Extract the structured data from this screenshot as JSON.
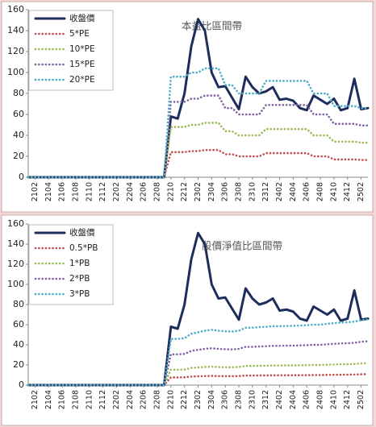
{
  "chart_data": [
    {
      "type": "line",
      "title": "本益比區間帶",
      "legend": "upper left",
      "ylim": [
        0,
        160
      ],
      "yticks": [
        0,
        20,
        40,
        60,
        80,
        100,
        120,
        140,
        160
      ],
      "categories": [
        null,
        "2102",
        null,
        "2104",
        null,
        "2106",
        null,
        "2108",
        null,
        "2110",
        null,
        "2112",
        null,
        "2202",
        null,
        "2204",
        null,
        "2206",
        null,
        "2208",
        null,
        "2210",
        null,
        "2212",
        null,
        "2302",
        null,
        "2304",
        null,
        "2306",
        null,
        "2308",
        null,
        "2310",
        null,
        "2312",
        null,
        "2402",
        null,
        "2404",
        null,
        "2406",
        null,
        "2408",
        null,
        "2410",
        null,
        "2412",
        null,
        "2502",
        null
      ],
      "series": [
        {
          "name": "收盤價",
          "color": "#1f2d5c",
          "values": [
            0,
            0,
            0,
            0,
            0,
            0,
            0,
            0,
            0,
            0,
            0,
            0,
            0,
            0,
            0,
            0,
            0,
            0,
            0,
            0,
            0,
            58,
            56,
            80,
            125,
            151,
            140,
            100,
            86,
            87,
            76,
            65,
            96,
            86,
            80,
            82,
            86,
            74,
            75,
            73,
            66,
            64,
            78,
            74,
            70,
            75,
            64,
            66,
            94,
            65,
            66
          ]
        },
        {
          "name": "5*PE",
          "color": "#c0504d",
          "values": [
            0,
            0,
            0,
            0,
            0,
            0,
            0,
            0,
            0,
            0,
            0,
            0,
            0,
            0,
            0,
            0,
            0,
            0,
            0,
            0,
            0,
            24,
            24,
            24,
            25,
            25,
            26,
            26,
            26,
            22,
            22,
            20,
            20,
            20,
            20,
            23,
            23,
            23,
            23,
            23,
            23,
            23,
            20,
            20,
            20,
            17,
            17,
            17,
            17,
            16.5,
            16.5
          ]
        },
        {
          "name": "10*PE",
          "color": "#9bbb59",
          "values": [
            0,
            0,
            0,
            0,
            0,
            0,
            0,
            0,
            0,
            0,
            0,
            0,
            0,
            0,
            0,
            0,
            0,
            0,
            0,
            0,
            0,
            48,
            48,
            48,
            50,
            50,
            52,
            52,
            52,
            44,
            44,
            40,
            40,
            40,
            40,
            46,
            46,
            46,
            46,
            46,
            46,
            46,
            40,
            40,
            40,
            34,
            34,
            34,
            34,
            33,
            33
          ]
        },
        {
          "name": "15*PE",
          "color": "#8064a2",
          "values": [
            0,
            0,
            0,
            0,
            0,
            0,
            0,
            0,
            0,
            0,
            0,
            0,
            0,
            0,
            0,
            0,
            0,
            0,
            0,
            0,
            0,
            72,
            72,
            72,
            75,
            75,
            78,
            78,
            78,
            66,
            66,
            60,
            60,
            60,
            60,
            69,
            69,
            69,
            69,
            69,
            69,
            69,
            60,
            60,
            60,
            51,
            51,
            51,
            51,
            49.5,
            49.5
          ]
        },
        {
          "name": "20*PE",
          "color": "#4bacc6",
          "values": [
            0,
            0,
            0,
            0,
            0,
            0,
            0,
            0,
            0,
            0,
            0,
            0,
            0,
            0,
            0,
            0,
            0,
            0,
            0,
            0,
            0,
            96,
            96,
            96,
            100,
            100,
            104,
            104,
            104,
            88,
            88,
            80,
            80,
            80,
            80,
            92,
            92,
            92,
            92,
            92,
            92,
            92,
            80,
            80,
            80,
            68,
            68,
            68,
            68,
            66,
            66
          ]
        }
      ]
    },
    {
      "type": "line",
      "title": "股價淨值比區間帶",
      "legend": "upper left",
      "ylim": [
        0,
        160
      ],
      "yticks": [
        0,
        20,
        40,
        60,
        80,
        100,
        120,
        140,
        160
      ],
      "categories": [
        null,
        "2102",
        null,
        "2104",
        null,
        "2106",
        null,
        "2108",
        null,
        "2110",
        null,
        "2112",
        null,
        "2202",
        null,
        "2204",
        null,
        "2206",
        null,
        "2208",
        null,
        "2210",
        null,
        "2212",
        null,
        "2302",
        null,
        "2304",
        null,
        "2306",
        null,
        "2308",
        null,
        "2310",
        null,
        "2312",
        null,
        "2402",
        null,
        "2404",
        null,
        "2406",
        null,
        "2408",
        null,
        "2410",
        null,
        "2412",
        null,
        "2502",
        null
      ],
      "series": [
        {
          "name": "收盤價",
          "color": "#1f2d5c",
          "values": [
            0,
            0,
            0,
            0,
            0,
            0,
            0,
            0,
            0,
            0,
            0,
            0,
            0,
            0,
            0,
            0,
            0,
            0,
            0,
            0,
            0,
            58,
            56,
            80,
            125,
            151,
            140,
            100,
            86,
            87,
            76,
            65,
            96,
            86,
            80,
            82,
            86,
            74,
            75,
            73,
            66,
            64,
            78,
            74,
            70,
            75,
            64,
            66,
            94,
            65,
            66
          ]
        },
        {
          "name": "0.5*PB",
          "color": "#c0504d",
          "values": [
            0,
            0,
            0,
            0,
            0,
            0,
            0,
            0,
            0,
            0,
            0,
            0,
            0,
            0,
            0,
            0,
            0,
            0,
            0,
            0,
            0,
            7.65,
            7.65,
            7.75,
            8.5,
            8.75,
            9,
            9.15,
            9,
            8.9,
            8.85,
            9,
            9.5,
            9.5,
            9.6,
            9.65,
            9.75,
            9.75,
            9.8,
            9.8,
            9.85,
            9.9,
            10,
            10,
            10.15,
            10.25,
            10.35,
            10.4,
            10.5,
            10.75,
            10.9
          ]
        },
        {
          "name": "1*PB",
          "color": "#9bbb59",
          "values": [
            0,
            0,
            0,
            0,
            0,
            0,
            0,
            0,
            0,
            0,
            0,
            0,
            0,
            0,
            0,
            0,
            0,
            0,
            0,
            0,
            0,
            15.3,
            15.3,
            15.5,
            17,
            17.5,
            18,
            18.3,
            18,
            17.8,
            17.7,
            18,
            19,
            19,
            19.2,
            19.3,
            19.5,
            19.5,
            19.6,
            19.6,
            19.7,
            19.8,
            20,
            20,
            20.3,
            20.5,
            20.7,
            20.8,
            21,
            21.5,
            21.8
          ]
        },
        {
          "name": "2*PB",
          "color": "#8064a2",
          "values": [
            0,
            0,
            0,
            0,
            0,
            0,
            0,
            0,
            0,
            0,
            0,
            0,
            0,
            0,
            0,
            0,
            0,
            0,
            0,
            0,
            0,
            30.6,
            30.6,
            31,
            34,
            35,
            36,
            36.6,
            36,
            35.6,
            35.4,
            36,
            38,
            38,
            38.4,
            38.6,
            39,
            39,
            39.2,
            39.2,
            39.4,
            39.6,
            40,
            40,
            40.6,
            41,
            41.4,
            41.6,
            42,
            43,
            43.6
          ]
        },
        {
          "name": "3*PB",
          "color": "#4bacc6",
          "values": [
            0,
            0,
            0,
            0,
            0,
            0,
            0,
            0,
            0,
            0,
            0,
            0,
            0,
            0,
            0,
            0,
            0,
            0,
            0,
            0,
            0,
            45.9,
            45.9,
            46.5,
            51,
            52.5,
            54,
            54.9,
            54,
            53.4,
            53.1,
            54,
            57,
            57,
            57.6,
            57.9,
            58.5,
            58.5,
            58.8,
            58.8,
            59.1,
            59.4,
            60,
            60,
            60.9,
            61.5,
            62.1,
            62.4,
            63,
            64.5,
            65.4
          ]
        }
      ]
    }
  ]
}
